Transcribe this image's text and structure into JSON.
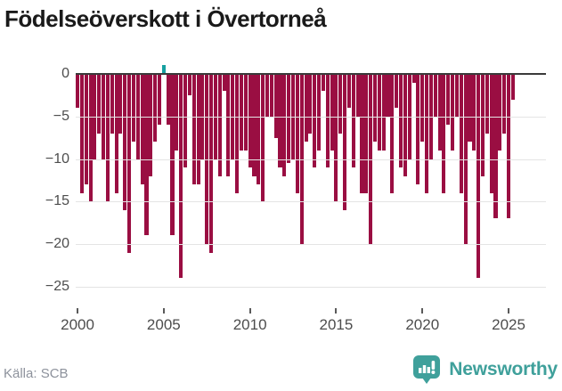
{
  "title": "Födelseöverskott i Övertorneå",
  "source": "Källa: SCB",
  "branding": {
    "logo_text": "Newsworthy",
    "logo_icon": "bar-chart-speech-bubble-icon",
    "logo_color": "#3fa09b"
  },
  "colors": {
    "bar_negative": "#9a0e42",
    "bar_positive": "#16a0a0",
    "gridline": "#e4e4e4",
    "zero_line": "#3a3a3a",
    "axis_text": "#4d4d4d",
    "title_text": "#1a1a1a",
    "source_text": "#8d929c"
  },
  "chart_data": {
    "type": "bar",
    "title": "Födelseöverskott i Övertorneå",
    "xlabel": "",
    "ylabel": "",
    "frequency": "quarterly",
    "x_start_year": 2000,
    "x_end": "2025-Q2",
    "ylim": [
      2,
      -27
    ],
    "grid": true,
    "legend": false,
    "yticks": [
      0,
      -5,
      -10,
      -15,
      -20,
      -25
    ],
    "xticks": [
      2000,
      2005,
      2010,
      2015,
      2020,
      2025
    ],
    "values": [
      -4,
      -14,
      -13,
      -15,
      -10,
      -7,
      -10,
      -15,
      -7,
      -14,
      -7,
      -16,
      -21,
      -8,
      -10,
      -13,
      -19,
      -12,
      -8,
      -6,
      1,
      -6,
      -19,
      -9,
      -24,
      -11,
      -2.5,
      -13,
      -13,
      -10,
      -20,
      -21,
      -10,
      -12,
      -2,
      -12,
      -10,
      -14,
      -9,
      -9,
      -11,
      -12,
      -13,
      -15,
      -5,
      -5,
      -7.5,
      -11,
      -12,
      -10.5,
      -10,
      -14,
      -20,
      -8,
      -7,
      -11,
      -9,
      -2,
      -11,
      -9,
      -15,
      -7,
      -16,
      -4,
      -11,
      -5,
      -14,
      -14,
      -20,
      -8,
      -9,
      -9,
      -5,
      -14,
      -4,
      -11,
      -12,
      -10,
      -1,
      -13,
      -8,
      -14,
      -10,
      -5,
      -9,
      -14,
      -6,
      -9,
      -5,
      -14,
      -20,
      -8,
      -9,
      -24,
      -12,
      -7,
      -14,
      -17,
      -9,
      -7,
      -17,
      -3
    ]
  }
}
